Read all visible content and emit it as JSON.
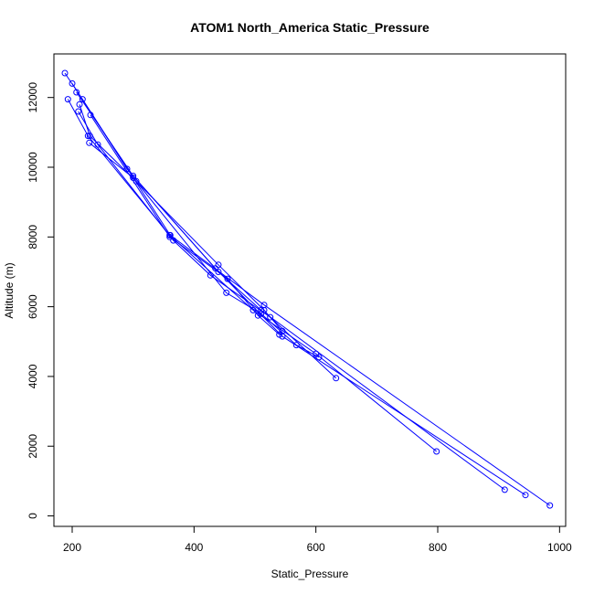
{
  "chart_data": {
    "type": "line",
    "title": "ATOM1 North_America Static_Pressure",
    "xlabel": "Static_Pressure",
    "ylabel": "Altitude (m)",
    "xlim": [
      170,
      1010
    ],
    "ylim": [
      -300,
      13250
    ],
    "x_ticks": [
      200,
      400,
      600,
      800,
      1000
    ],
    "y_ticks": [
      0,
      2000,
      4000,
      6000,
      8000,
      10000,
      12000
    ],
    "grid": false,
    "color": "#0000ff",
    "markers": "open-circle",
    "series": [
      {
        "x": [
          984,
          515,
          361,
          217,
          188
        ],
        "y": [
          300,
          6050,
          8050,
          11950,
          12700
        ]
      },
      {
        "x": [
          944,
          545,
          435,
          290,
          200
        ],
        "y": [
          600,
          5150,
          7100,
          9950,
          12400
        ]
      },
      {
        "x": [
          910,
          510,
          440,
          300,
          207
        ],
        "y": [
          750,
          5900,
          7000,
          9750,
          12150
        ]
      },
      {
        "x": [
          798,
          600,
          497,
          360,
          226,
          193
        ],
        "y": [
          1850,
          4650,
          5900,
          8050,
          10900,
          11950
        ]
      },
      {
        "x": [
          633,
          525,
          427,
          366,
          242,
          210
        ],
        "y": [
          3950,
          5700,
          6900,
          7900,
          10650,
          11600
        ]
      },
      {
        "x": [
          605,
          568,
          510,
          453,
          300,
          228
        ],
        "y": [
          4550,
          4900,
          5800,
          6400,
          9700,
          10700
        ]
      },
      {
        "x": [
          545,
          515,
          440,
          305,
          229,
          212
        ],
        "y": [
          5300,
          5900,
          7200,
          9600,
          10900,
          11800
        ]
      },
      {
        "x": [
          540,
          505,
          455,
          360,
          230
        ],
        "y": [
          5200,
          5750,
          6800,
          8000,
          11500
        ]
      }
    ]
  }
}
